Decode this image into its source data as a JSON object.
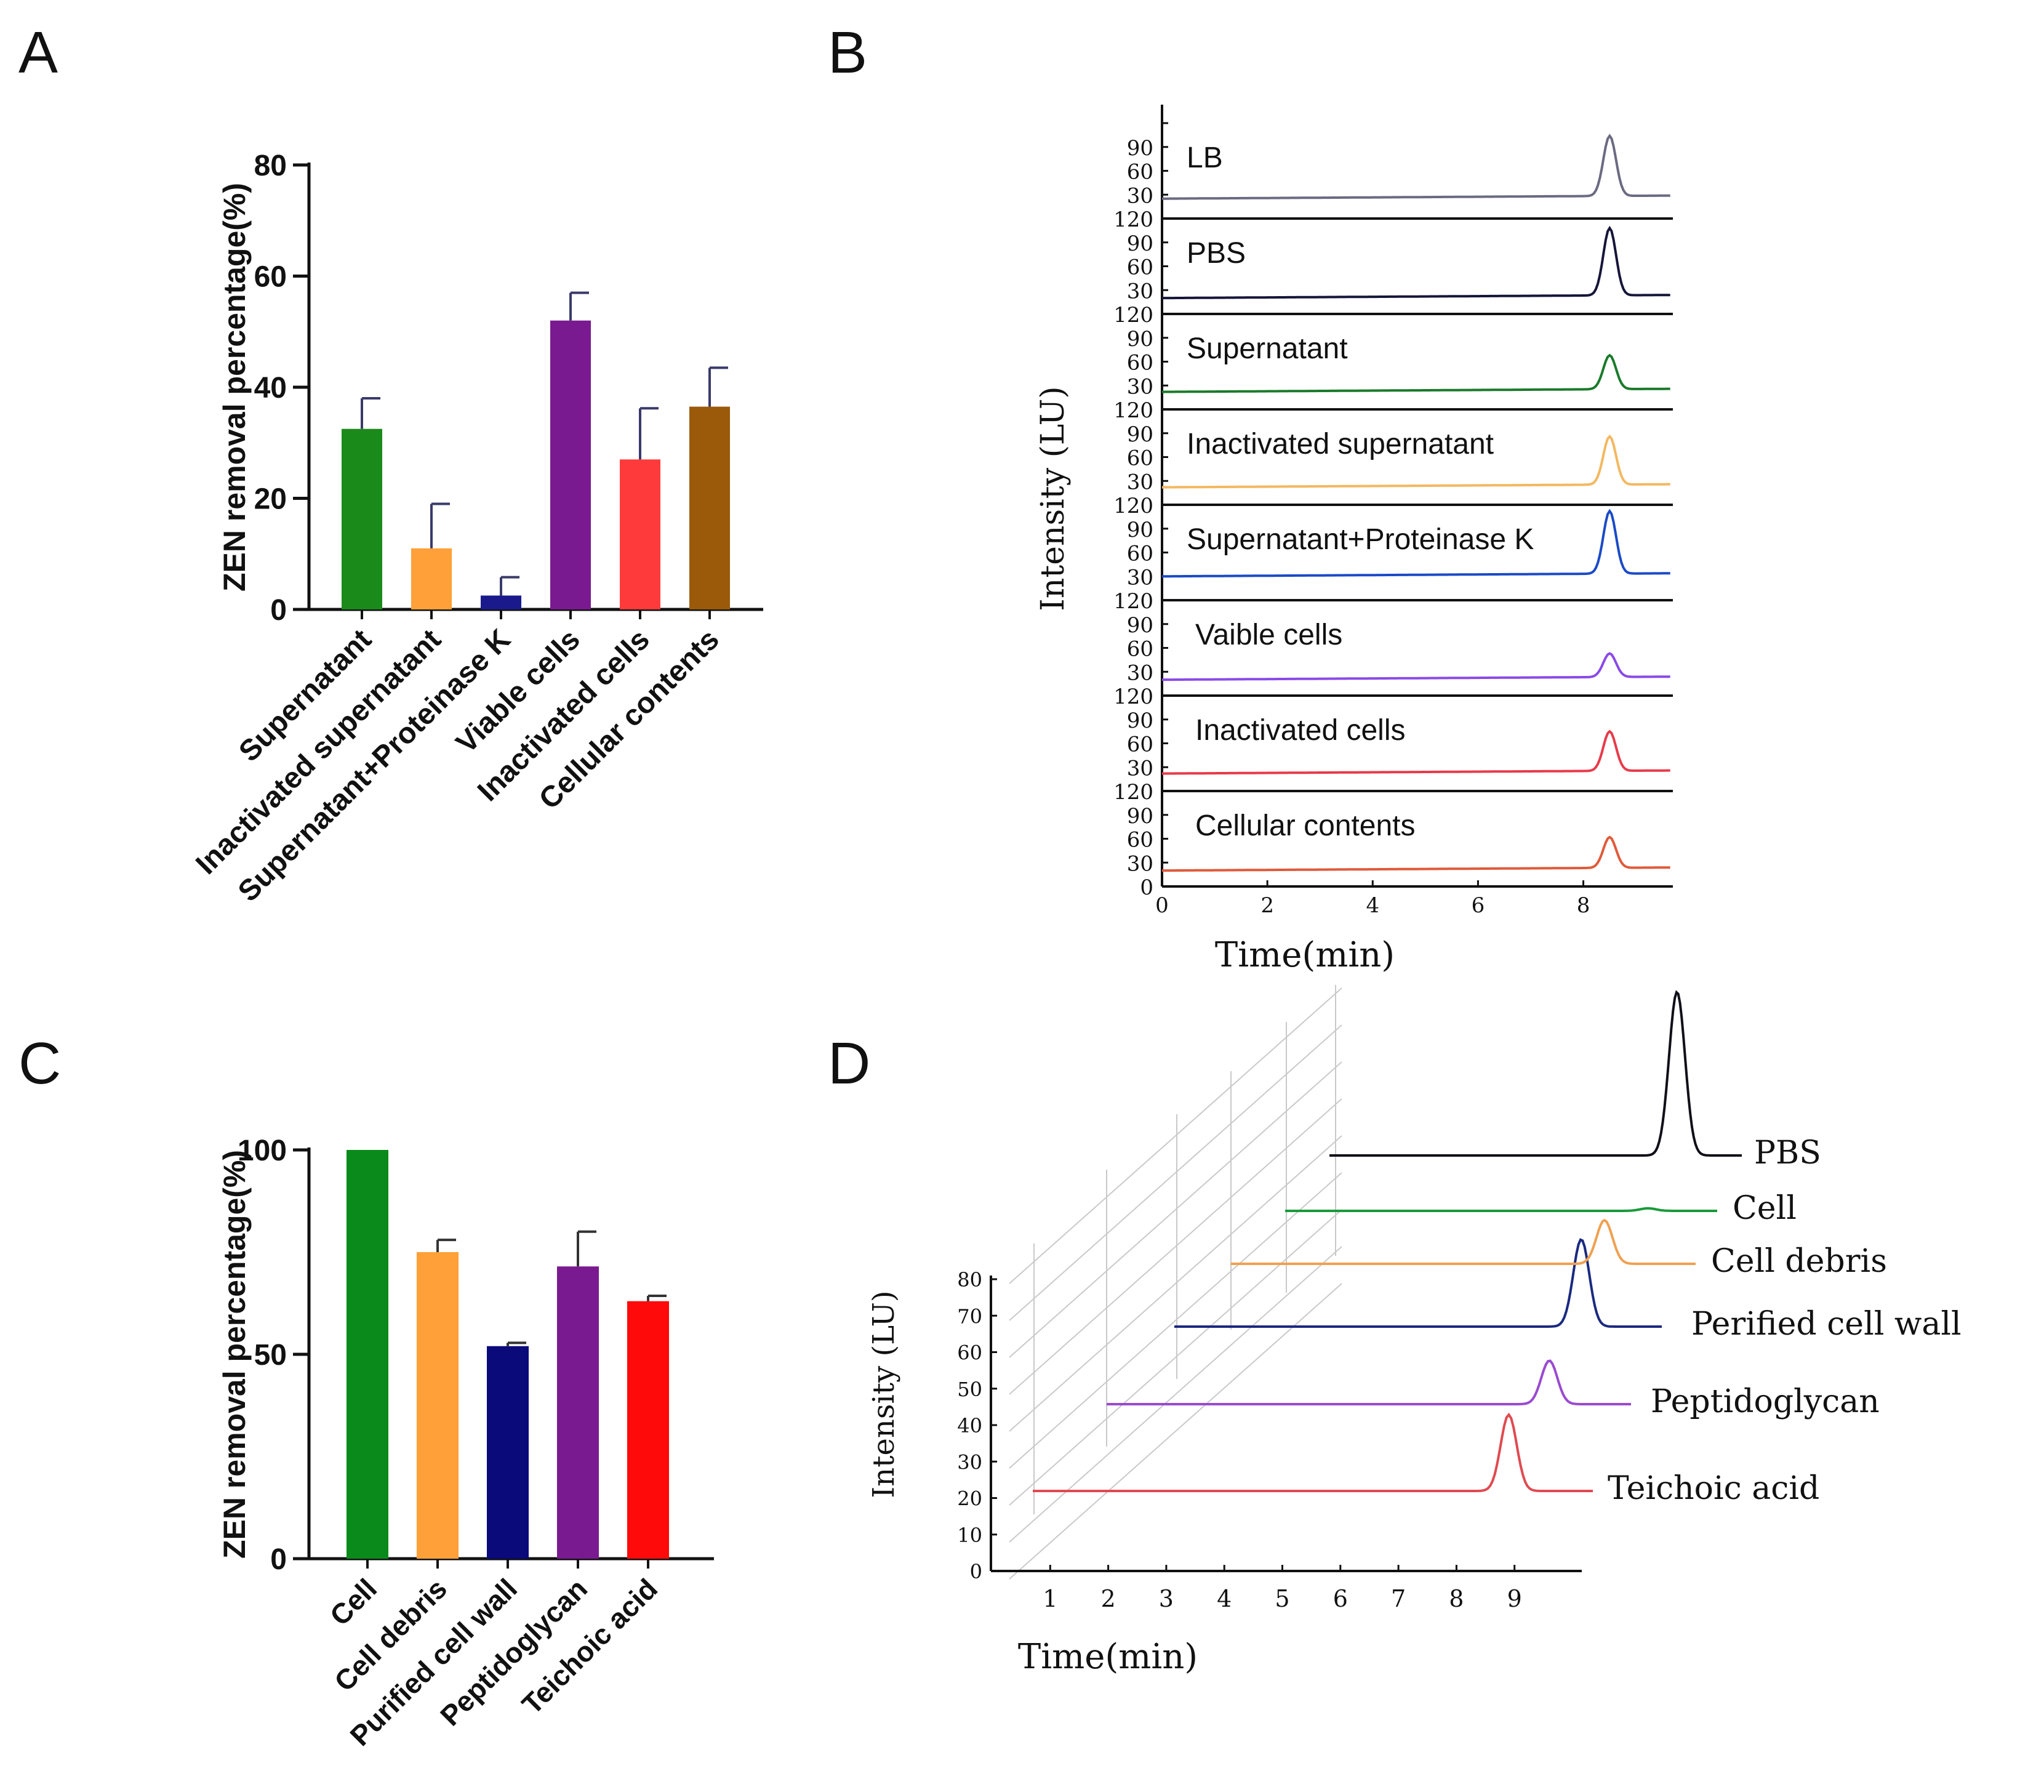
{
  "panels": {
    "A": {
      "letter": "A"
    },
    "B": {
      "letter": "B"
    },
    "C": {
      "letter": "C"
    },
    "D": {
      "letter": "D"
    }
  },
  "chart_data": [
    {
      "id": "A",
      "type": "bar",
      "ylabel": "ZEN removal percentage(%)",
      "ylim": [
        0,
        80
      ],
      "yticks": [
        0,
        20,
        40,
        60,
        80
      ],
      "categories": [
        "Supernatant",
        "Inactivated supernatant",
        "Supernatant+Proteinase K",
        "Viable cells",
        "Inactivated cells",
        "Cellular contents"
      ],
      "values": [
        32.5,
        11,
        2.5,
        52,
        27,
        36.5
      ],
      "errors": [
        5.5,
        8,
        3.3,
        5,
        9.2,
        7
      ],
      "colors": [
        "#1a8a1a",
        "#ffa038",
        "#1a1a8c",
        "#7a1a90",
        "#ff3a3a",
        "#9a5a0a"
      ]
    },
    {
      "id": "B",
      "type": "line",
      "ylabel": "Intensity (LU)",
      "xlabel": "Time(min)",
      "xlim": [
        0,
        9.7
      ],
      "xticks": [
        0,
        2,
        4,
        6,
        8
      ],
      "ylim": [
        0,
        120
      ],
      "yticks": [
        30,
        60,
        90,
        120
      ],
      "first_ytick_bottom": "0",
      "peak_time": 8.5,
      "traces": [
        {
          "name": "LB",
          "color": "#6a6a82",
          "baseline": 25,
          "peak": 104
        },
        {
          "name": "PBS",
          "color": "#16163a",
          "baseline": 20,
          "peak": 108
        },
        {
          "name": "Supernatant",
          "color": "#1a7a2a",
          "baseline": 22,
          "peak": 68
        },
        {
          "name": "Inactivated supernatant",
          "color": "#f3b860",
          "baseline": 22,
          "peak": 86
        },
        {
          "name": "Supernatant+Proteinase K",
          "color": "#1a4ac8",
          "baseline": 30,
          "peak": 112
        },
        {
          "name": "Vaible cells",
          "color": "#8a4ae8",
          "baseline": 20,
          "peak": 53
        },
        {
          "name": "Inactivated cells",
          "color": "#e83a4a",
          "baseline": 22,
          "peak": 75
        },
        {
          "name": "Cellular contents",
          "color": "#e05a3a",
          "baseline": 20,
          "peak": 62
        }
      ]
    },
    {
      "id": "C",
      "type": "bar",
      "ylabel": "ZEN removal percentage(%)",
      "ylim": [
        0,
        100
      ],
      "yticks": [
        0,
        50,
        100
      ],
      "categories": [
        "Cell",
        "Cell debris",
        "Purified cell wall",
        "Peptidoglycan",
        "Teichoic acid"
      ],
      "values": [
        100,
        75,
        52,
        71.5,
        63
      ],
      "errors": [
        0,
        3,
        0.8,
        8.5,
        1.3
      ],
      "colors": [
        "#0a8a1a",
        "#ffa038",
        "#0a0a7a",
        "#7a1a90",
        "#ff0a0a"
      ]
    },
    {
      "id": "D",
      "type": "line",
      "ylabel": "Intensity (LU)",
      "xlabel": "Time(min)",
      "xticks": [
        1,
        2,
        3,
        4,
        5,
        6,
        7,
        8,
        9
      ],
      "yticks": [
        0,
        10,
        20,
        30,
        40,
        50,
        60,
        70,
        80
      ],
      "traces": [
        {
          "name": "Teichoic acid",
          "color": "#e04a50",
          "peak_time": 8.9,
          "height": 21
        },
        {
          "name": "Peptidoglycan",
          "color": "#9a4ad0",
          "peak_time": 9.6,
          "height": 12
        },
        {
          "name": "Perified cell wall",
          "color": "#1a2a80",
          "peak_time": 10.15,
          "height": 24
        },
        {
          "name": "Cell debris",
          "color": "#f0a050",
          "peak_time": 10.55,
          "height": 12
        },
        {
          "name": "Cell",
          "color": "#1a9a3a",
          "peak_time": 11.3,
          "height": 0.7
        },
        {
          "name": "PBS",
          "color": "#101018",
          "peak_time": 11.8,
          "height": 45
        }
      ]
    }
  ]
}
